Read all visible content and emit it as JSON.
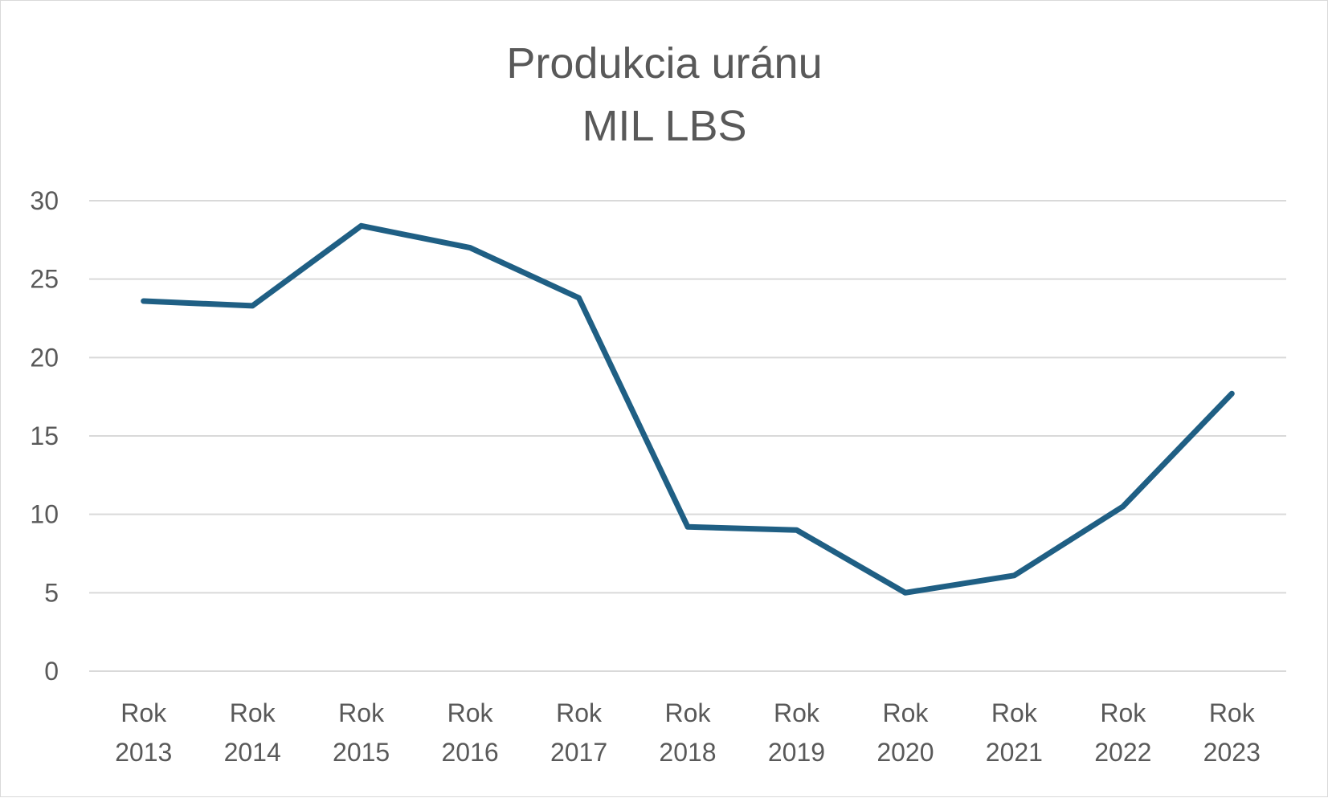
{
  "chart_data": {
    "type": "line",
    "title": "Produkcia uránu",
    "subtitle": "MIL LBS",
    "categories": [
      [
        "Rok",
        "2013"
      ],
      [
        "Rok",
        "2014"
      ],
      [
        "Rok",
        "2015"
      ],
      [
        "Rok",
        "2016"
      ],
      [
        "Rok",
        "2017"
      ],
      [
        "Rok",
        "2018"
      ],
      [
        "Rok",
        "2019"
      ],
      [
        "Rok",
        "2020"
      ],
      [
        "Rok",
        "2021"
      ],
      [
        "Rok",
        "2022"
      ],
      [
        "Rok",
        "2023"
      ]
    ],
    "series": [
      {
        "values": [
          23.6,
          23.3,
          28.4,
          27.0,
          23.8,
          9.2,
          9.0,
          5.0,
          6.1,
          10.5,
          17.7
        ],
        "color": "#1f5f84"
      }
    ],
    "yticks": [
      "0",
      "5",
      "10",
      "15",
      "20",
      "25",
      "30"
    ],
    "ylim": [
      0,
      30
    ],
    "grid": true,
    "legend": "none"
  }
}
